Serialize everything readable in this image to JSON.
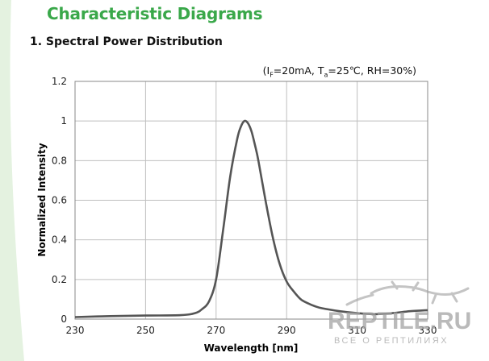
{
  "page": {
    "heading": "Characteristic Diagrams",
    "section_title": "1. Spectral Power Distribution",
    "conditions": {
      "open": "(I",
      "if_sub": "F",
      "if_val": "=20mA, T",
      "ta_sub": "a",
      "ta_val": "=25℃, RH=30%)"
    }
  },
  "watermark": {
    "brand": "REPTILE.RU",
    "tagline": "ВСЕ О РЕПТИЛИЯХ"
  },
  "colors": {
    "heading": "#3aa84a",
    "curve": "#555555",
    "grid": "#bfbfbf",
    "leaf": "#dff0dc"
  },
  "chart_data": {
    "type": "line",
    "xlabel": "Wavelength [nm]",
    "ylabel": "Normalized Intensity",
    "xlim": [
      230,
      330
    ],
    "ylim": [
      0,
      1.2
    ],
    "xticks": [
      230,
      250,
      270,
      290,
      310,
      330
    ],
    "yticks": [
      0,
      0.2,
      0.4,
      0.6,
      0.8,
      1,
      1.2
    ],
    "ytick_labels": [
      "0",
      "0.2",
      "0.4",
      "0.6",
      "0.8",
      "1",
      "1.2"
    ],
    "grid": true,
    "series": [
      {
        "x": [
          230,
          240,
          250,
          260,
          264,
          266,
          268,
          270,
          272,
          274,
          276,
          277,
          278,
          279,
          280,
          281,
          282,
          284,
          286,
          288,
          290,
          292,
          294,
          296,
          298,
          300,
          305,
          310,
          315,
          320,
          325,
          330
        ],
        "y": [
          0.01,
          0.015,
          0.018,
          0.02,
          0.03,
          0.05,
          0.09,
          0.2,
          0.45,
          0.72,
          0.91,
          0.97,
          1.0,
          0.99,
          0.95,
          0.88,
          0.8,
          0.6,
          0.42,
          0.28,
          0.19,
          0.14,
          0.1,
          0.08,
          0.065,
          0.055,
          0.04,
          0.03,
          0.025,
          0.03,
          0.04,
          0.045
        ]
      }
    ]
  }
}
